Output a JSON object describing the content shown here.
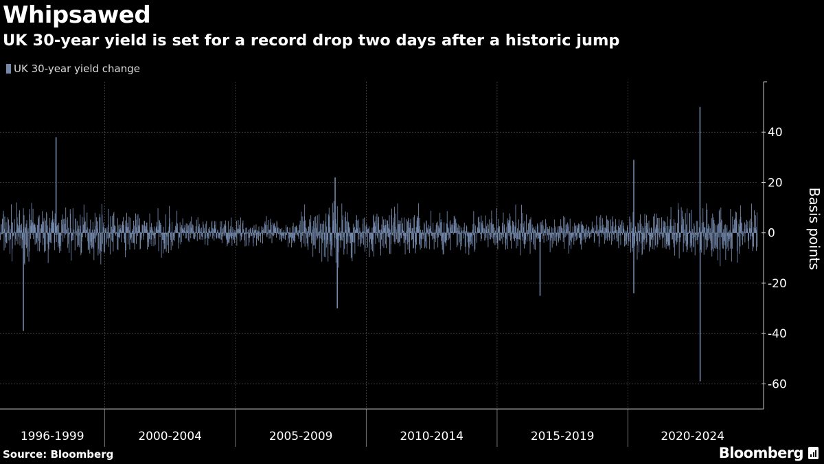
{
  "title": "Whipsawed",
  "subtitle": "UK 30-year yield is set for a record drop two days after a historic jump",
  "legend": {
    "label": "UK 30-year yield change",
    "color": "#7388ab"
  },
  "source": "Source: Bloomberg",
  "brand": "Bloomberg",
  "brand_icon": "bloomberg-terminal-icon",
  "colors": {
    "background": "#000000",
    "bar": "#7388ab",
    "grid": "#555555",
    "text": "#ffffff"
  },
  "chart_data": {
    "type": "bar",
    "title": "Whipsawed",
    "subtitle": "UK 30-year yield is set for a record drop two days after a historic jump",
    "series": [
      {
        "name": "UK 30-year yield change",
        "note": "daily changes; typical range about -12 to +12 bp",
        "notable_points": [
          {
            "date": "1996-11",
            "value": -39
          },
          {
            "date": "1998-02",
            "value": 38
          },
          {
            "date": "2008-10",
            "value": 22
          },
          {
            "date": "2008-11",
            "value": -30
          },
          {
            "date": "2016-08",
            "value": -25
          },
          {
            "date": "2020-03",
            "value": 29
          },
          {
            "date": "2020-03",
            "value": -24
          },
          {
            "date": "2022-09-26",
            "value": 50
          },
          {
            "date": "2022-09-28",
            "value": -59
          }
        ]
      }
    ],
    "x_categories": [
      "1996-1999",
      "2000-2004",
      "2005-2009",
      "2010-2014",
      "2015-2019",
      "2020-2024"
    ],
    "ylabel": "Basis points",
    "yticks": [
      40,
      20,
      0,
      -20,
      -40,
      -60
    ],
    "ylim": [
      -70,
      60
    ],
    "grid": true,
    "legend_position": "top-left",
    "y_axis_position": "right"
  }
}
